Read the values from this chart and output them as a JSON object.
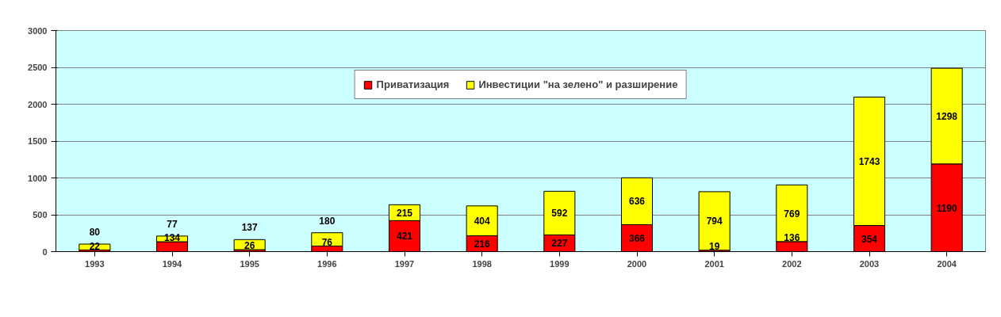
{
  "chart_data": {
    "type": "bar",
    "stacked": true,
    "categories": [
      "1993",
      "1994",
      "1995",
      "1996",
      "1997",
      "1998",
      "1999",
      "2000",
      "2001",
      "2002",
      "2003",
      "2004"
    ],
    "series": [
      {
        "name": "Приватизация",
        "color": "#ff0000",
        "values": [
          22,
          134,
          26,
          76,
          421,
          216,
          227,
          366,
          19,
          136,
          354,
          1190
        ]
      },
      {
        "name": "Инвестиции \"на зелено\" и разширение",
        "color": "#ffff00",
        "values": [
          80,
          77,
          137,
          180,
          215,
          404,
          592,
          636,
          794,
          769,
          1743,
          1298
        ]
      }
    ],
    "ylim": [
      0,
      3000
    ],
    "yticks": [
      0,
      500,
      1000,
      1500,
      2000,
      2500,
      3000
    ],
    "grid": "y",
    "legend": "top",
    "data_labels": true
  }
}
